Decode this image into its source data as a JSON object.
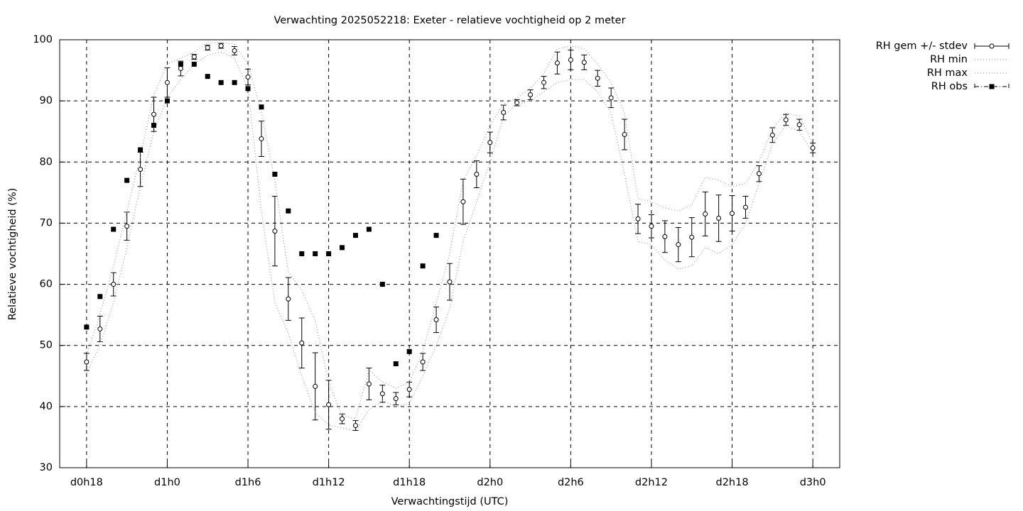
{
  "chart_data": {
    "type": "errorbar",
    "title": "Verwachting 2025052218: Exeter - relatieve vochtigheid op 2 meter",
    "x_label": "Verwachtingstijd (UTC)",
    "y_label": "Relatieve vochtigheid (%)",
    "xlim": [
      16,
      74
    ],
    "ylim": [
      30,
      100
    ],
    "xticks": [
      {
        "value": 18,
        "label": "d0h18"
      },
      {
        "value": 24,
        "label": "d1h0"
      },
      {
        "value": 30,
        "label": "d1h6"
      },
      {
        "value": 36,
        "label": "d1h12"
      },
      {
        "value": 42,
        "label": "d1h18"
      },
      {
        "value": 48,
        "label": "d2h0"
      },
      {
        "value": 54,
        "label": "d2h6"
      },
      {
        "value": 60,
        "label": "d2h12"
      },
      {
        "value": 66,
        "label": "d2h18"
      },
      {
        "value": 72,
        "label": "d3h0"
      }
    ],
    "yticks": [
      30,
      40,
      50,
      60,
      70,
      80,
      90,
      100
    ],
    "grid": true,
    "legend": "outside-right",
    "x": [
      18,
      19,
      20,
      21,
      22,
      23,
      24,
      25,
      26,
      27,
      28,
      29,
      30,
      31,
      32,
      33,
      34,
      35,
      36,
      37,
      38,
      39,
      40,
      41,
      42,
      43,
      44,
      45,
      46,
      47,
      48,
      49,
      50,
      51,
      52,
      53,
      54,
      55,
      56,
      57,
      58,
      59,
      60,
      61,
      62,
      63,
      64,
      65,
      66,
      67,
      68,
      69,
      70,
      71,
      72
    ],
    "series": [
      {
        "name": "RH gem +/- stdev",
        "color": "#000000",
        "style": "errorbar",
        "values": [
          47.3,
          52.7,
          60,
          69.5,
          78.8,
          87.8,
          93,
          95.3,
          97.2,
          98.7,
          99,
          98.2,
          93.9,
          83.8,
          68.7,
          57.6,
          50.4,
          43.3,
          40.3,
          38,
          36.9,
          43.7,
          42.1,
          41.3,
          42.8,
          47.3,
          54.2,
          60.4,
          73.5,
          78,
          83.2,
          88.1,
          89.7,
          91,
          93,
          96.2,
          96.7,
          96.3,
          93.7,
          90.5,
          84.5,
          70.7,
          69.5,
          67.8,
          66.5,
          67.7,
          71.5,
          70.8,
          71.6,
          72.6,
          78.1,
          84.4,
          86.9,
          86.1,
          82.3
        ],
        "errors": [
          1.4,
          2.1,
          1.9,
          2.3,
          2.8,
          2.8,
          2.4,
          1.2,
          0.4,
          0.4,
          0.4,
          0.7,
          1.3,
          2.9,
          5.7,
          3.5,
          4.1,
          5.5,
          4,
          0.8,
          0.8,
          2.6,
          1.4,
          1,
          1.2,
          1.4,
          2.1,
          3,
          3.7,
          2.2,
          1.7,
          1.2,
          0.5,
          0.8,
          1,
          1.8,
          1.6,
          1.2,
          1.3,
          1.6,
          2.5,
          2.4,
          1.9,
          2.6,
          2.8,
          3.2,
          3.6,
          3.8,
          2.9,
          1.8,
          1.3,
          1.2,
          0.9,
          0.9,
          0.8
        ]
      },
      {
        "name": "RH min",
        "color": "#999999",
        "style": "dotted",
        "values": [
          45.5,
          50,
          57,
          66,
          76,
          85,
          90.5,
          93.5,
          96,
          97.5,
          98,
          97,
          92,
          72,
          57,
          52,
          45,
          39,
          37,
          36.5,
          36,
          39.5,
          41,
          40,
          40.5,
          45,
          50,
          56,
          67,
          73.5,
          80,
          87.5,
          89.5,
          90,
          91.5,
          93,
          93.5,
          93.5,
          91.5,
          88,
          78,
          67,
          66.5,
          64,
          62.5,
          63,
          66,
          65,
          66.5,
          70,
          76.5,
          83,
          86,
          85,
          81.5
        ]
      },
      {
        "name": "RH max",
        "color": "#999999",
        "style": "dotted",
        "values": [
          48.5,
          55,
          63,
          72,
          81,
          91,
          96,
          97,
          98,
          99.5,
          99.5,
          99.3,
          96,
          88,
          77,
          62,
          59,
          54,
          44,
          38.5,
          38,
          46,
          44,
          43,
          44,
          49,
          57,
          65,
          77,
          81,
          86,
          89.5,
          90.5,
          92,
          94.5,
          98.5,
          99,
          98.5,
          96,
          93,
          88,
          74,
          73.5,
          72.5,
          72,
          73,
          77.5,
          77,
          76,
          76.5,
          80,
          85.5,
          88,
          87.5,
          83
        ]
      },
      {
        "name": "RH obs",
        "color": "#000000",
        "style": "squares",
        "values": [
          53,
          58,
          69,
          77,
          82,
          86,
          90,
          96,
          96,
          94,
          93,
          93,
          92,
          89,
          78,
          72,
          65,
          65,
          65,
          66,
          68,
          69,
          60,
          47,
          49,
          63,
          68,
          null,
          null,
          null,
          null,
          null,
          null,
          null,
          null,
          null,
          null,
          null,
          null,
          null,
          null,
          null,
          null,
          null,
          null,
          null,
          null,
          null,
          null,
          null,
          null,
          null,
          null,
          null,
          null
        ]
      }
    ]
  }
}
